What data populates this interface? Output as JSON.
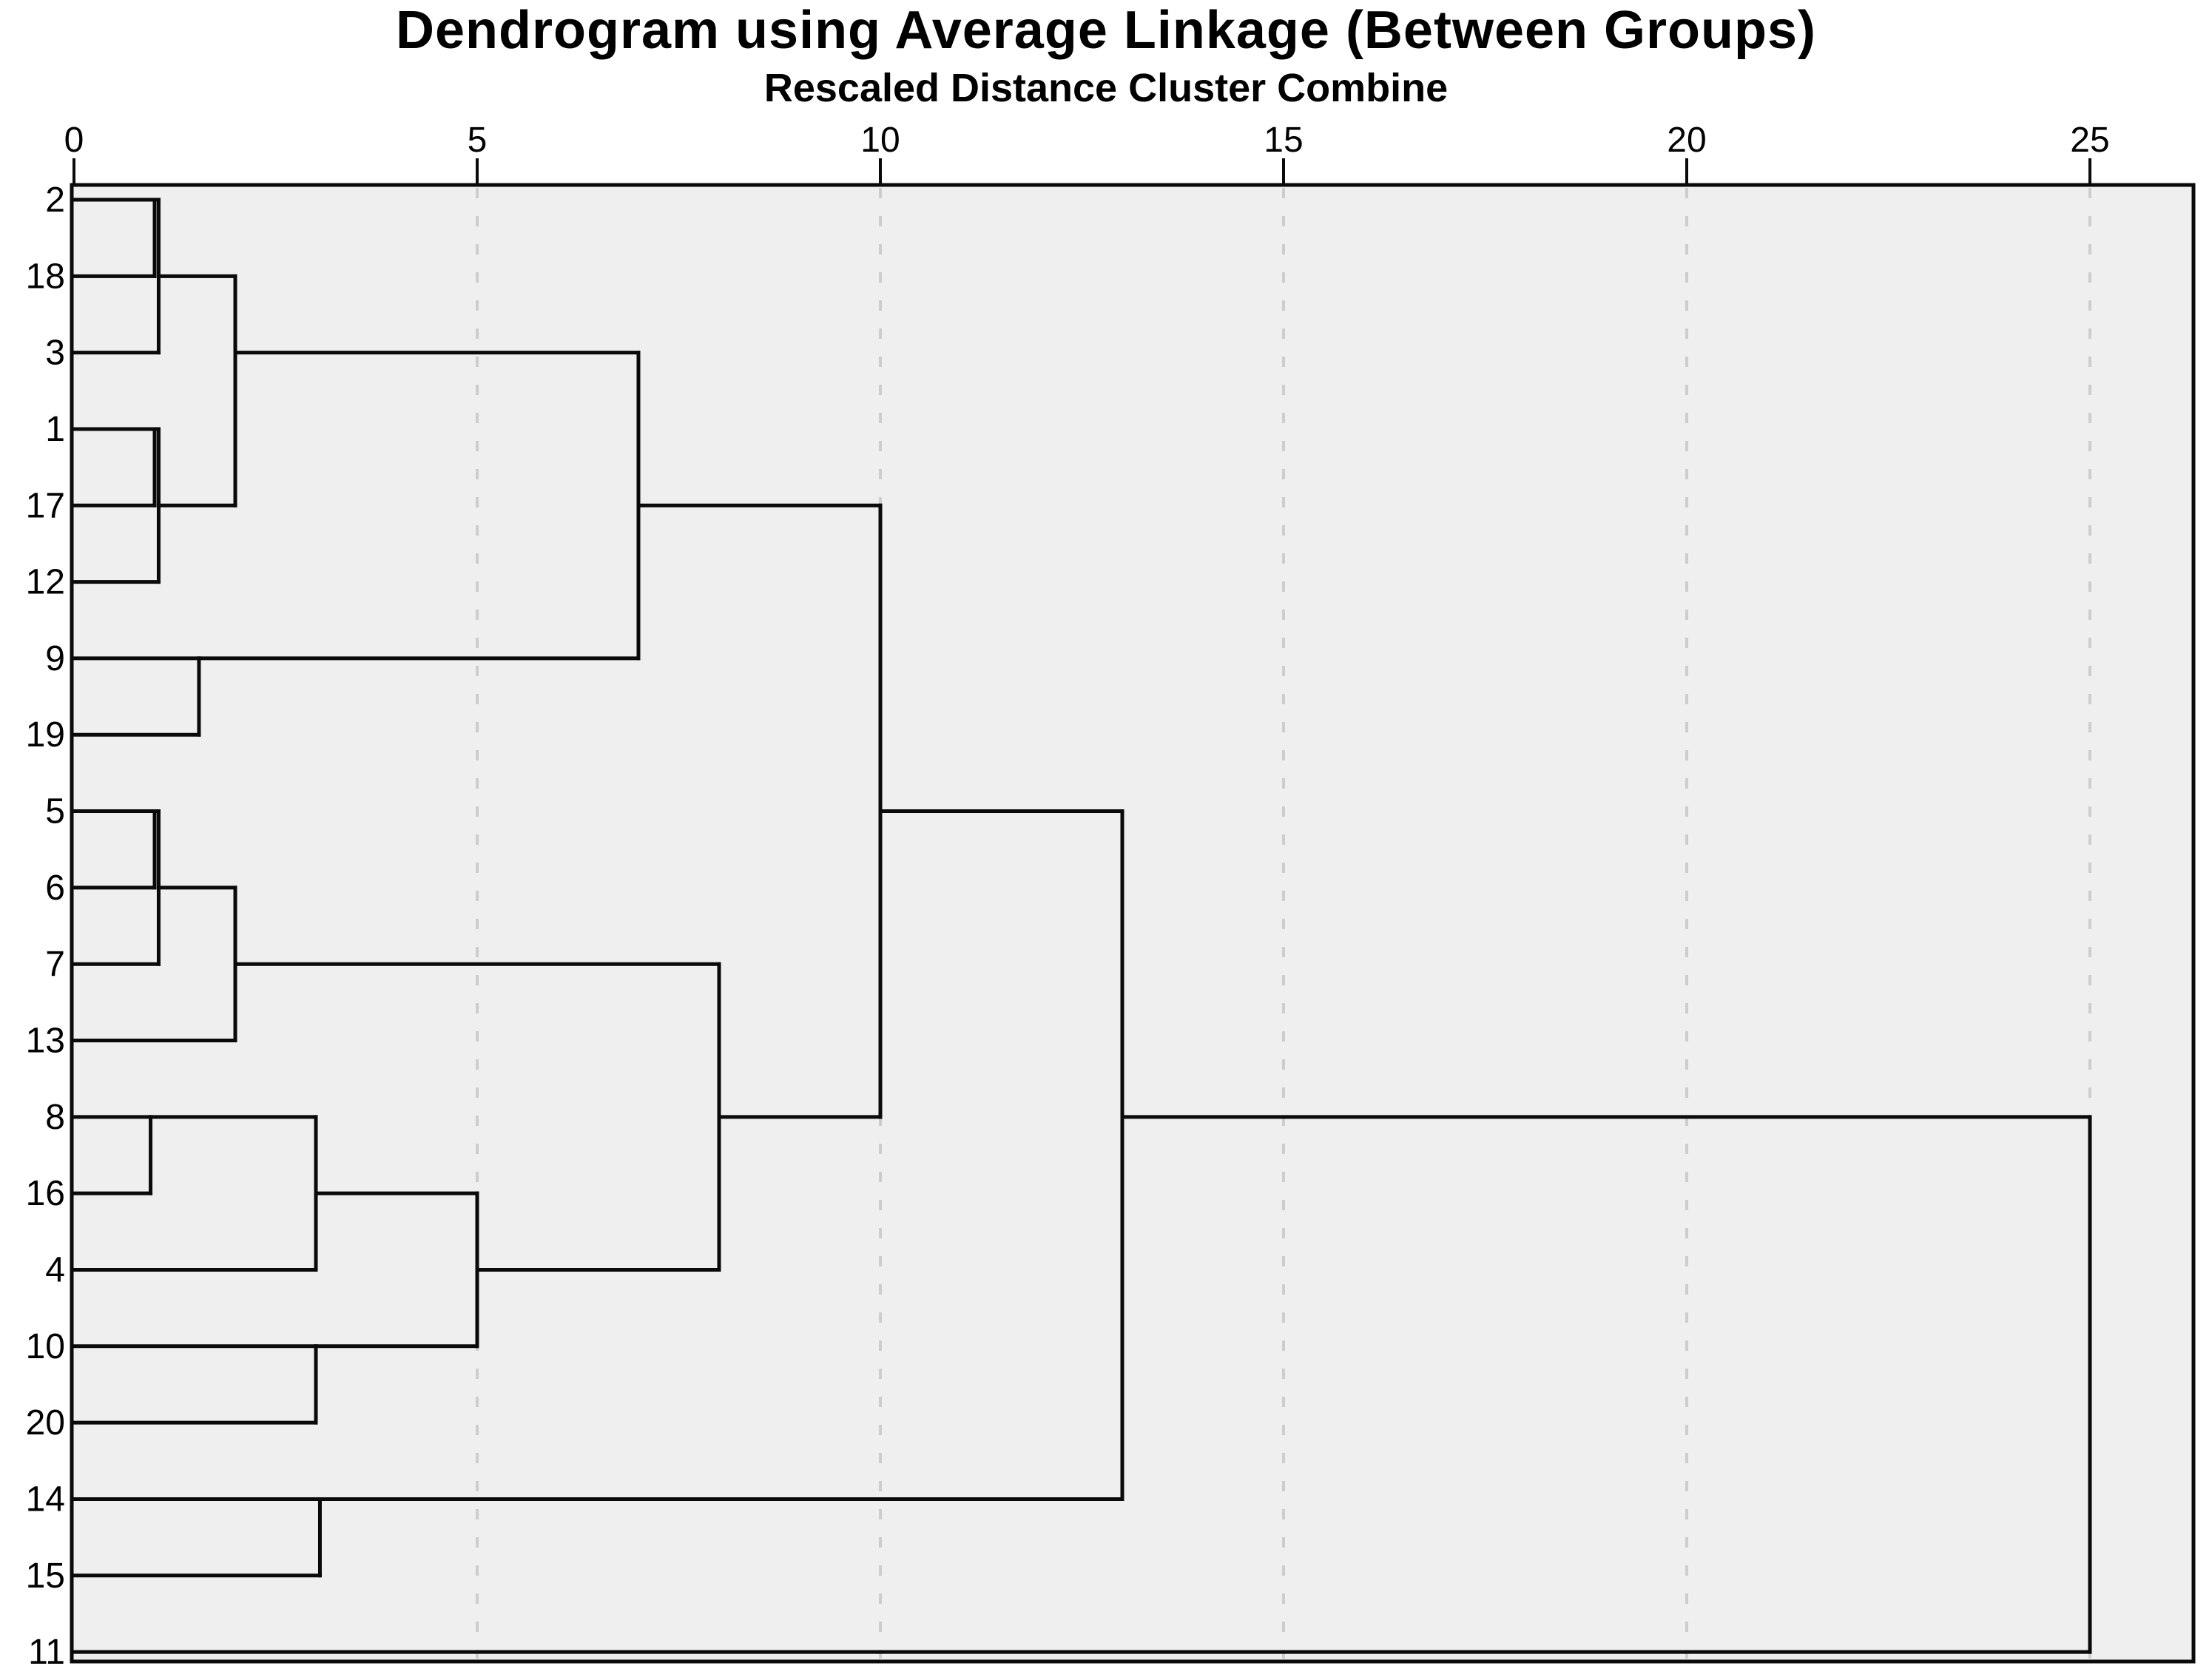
{
  "title": "Dendrogram using Average Linkage (Between Groups)",
  "subtitle": "Rescaled Distance Cluster Combine",
  "chart_data": {
    "type": "dendrogram",
    "orientation": "left-labels-root-right",
    "title": "Dendrogram using Average Linkage (Between Groups)",
    "xlabel": "Rescaled Distance Cluster Combine",
    "axis": {
      "range": [
        0,
        25
      ],
      "ticks": [
        0,
        5,
        10,
        15,
        20,
        25
      ],
      "gridlines": [
        5,
        10,
        15,
        20,
        25
      ],
      "grid_style": "dashed"
    },
    "leaves": [
      "2",
      "18",
      "3",
      "1",
      "17",
      "12",
      "9",
      "19",
      "5",
      "6",
      "7",
      "13",
      "8",
      "16",
      "4",
      "10",
      "20",
      "14",
      "15",
      "11"
    ],
    "merges": [
      {
        "a": "2",
        "b": "18",
        "d": 1.0
      },
      {
        "a": "#0",
        "b": "3",
        "d": 1.05
      },
      {
        "a": "1",
        "b": "17",
        "d": 1.0
      },
      {
        "a": "#2",
        "b": "12",
        "d": 1.05
      },
      {
        "a": "5",
        "b": "6",
        "d": 1.0
      },
      {
        "a": "#4",
        "b": "7",
        "d": 1.05
      },
      {
        "a": "8",
        "b": "16",
        "d": 0.95
      },
      {
        "a": "9",
        "b": "19",
        "d": 1.55
      },
      {
        "a": "#1",
        "b": "#3",
        "d": 2.0
      },
      {
        "a": "#5",
        "b": "13",
        "d": 2.0
      },
      {
        "a": "#6",
        "b": "4",
        "d": 3.0
      },
      {
        "a": "10",
        "b": "20",
        "d": 3.0
      },
      {
        "a": "14",
        "b": "15",
        "d": 3.05
      },
      {
        "a": "#10",
        "b": "#11",
        "d": 5.0
      },
      {
        "a": "#8",
        "b": "#7",
        "d": 7.0
      },
      {
        "a": "#9",
        "b": "#13",
        "d": 8.0
      },
      {
        "a": "#14",
        "b": "#15",
        "d": 10.0
      },
      {
        "a": "#16",
        "b": "#12",
        "d": 13.0
      },
      {
        "a": "#17",
        "b": "11",
        "d": 25.0
      }
    ],
    "colors": {
      "line": "#0a0a0a",
      "grid": "#cdcdcd",
      "plot_bg": "#efeff0",
      "page_bg": "#ffffff"
    }
  }
}
